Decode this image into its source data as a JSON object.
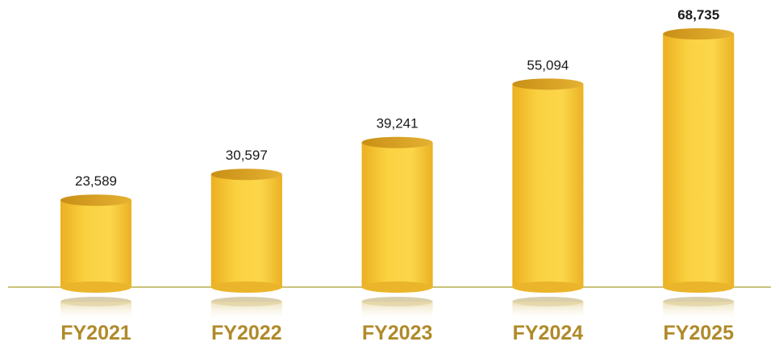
{
  "chart_data": {
    "type": "bar",
    "categories": [
      "FY2021",
      "FY2022",
      "FY2023",
      "FY2024",
      "FY2025"
    ],
    "values": [
      23589,
      30597,
      39241,
      55094,
      68735
    ],
    "value_labels": [
      "23,589",
      "30,597",
      "39,241",
      "55,094",
      "68,735"
    ],
    "color": "#f7c531"
  }
}
